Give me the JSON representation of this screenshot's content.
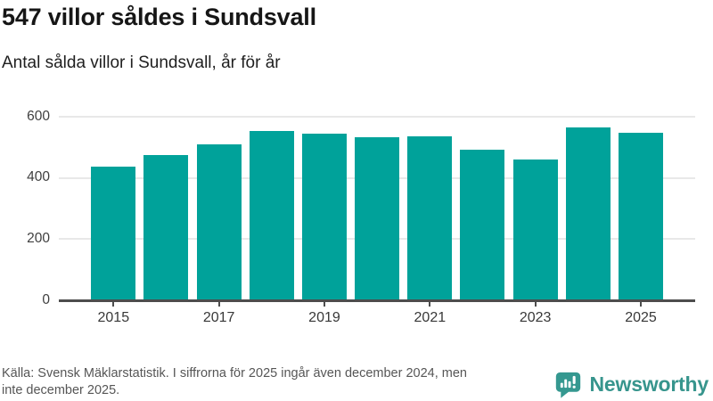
{
  "header": {
    "title": "547 villor såldes i Sundsvall",
    "subtitle": "Antal sålda villor i Sundsvall, år för år"
  },
  "chart_data": {
    "type": "bar",
    "title": "547 villor såldes i Sundsvall",
    "subtitle": "Antal sålda villor i Sundsvall, år för år",
    "categories": [
      2015,
      2016,
      2017,
      2018,
      2019,
      2020,
      2021,
      2022,
      2023,
      2024,
      2025
    ],
    "values": [
      437,
      475,
      510,
      553,
      545,
      533,
      535,
      492,
      460,
      566,
      547
    ],
    "xtick_labels": [
      "2015",
      "2017",
      "2019",
      "2021",
      "2023",
      "2025"
    ],
    "yticks": [
      0,
      200,
      400,
      600
    ],
    "ylim": [
      0,
      600
    ],
    "grid": true,
    "legend": false,
    "bar_color": "#00a29a",
    "grid_color": "#e8e8e8",
    "axis_color": "#4d4d4d",
    "tick_label_color": "#3f3f3f"
  },
  "footer": {
    "source_lines": [
      "Källa: Svensk Mäklarstatistik. I siffrorna för 2025 ingår även december 2024, men",
      "inte december 2025."
    ]
  },
  "branding": {
    "name": "Newsworthy",
    "brand_color": "#37958d",
    "icon": "bar-chart-speech-bubble"
  }
}
